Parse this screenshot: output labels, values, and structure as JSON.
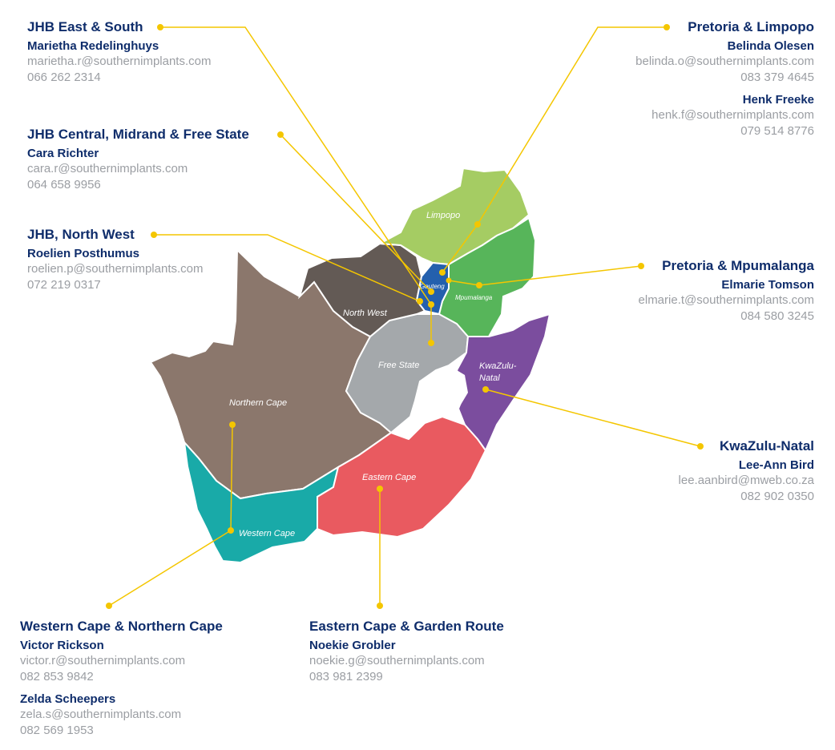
{
  "colors": {
    "title_navy": "#0f2d6b",
    "detail_grey": "#9b9ea3",
    "leader_yellow": "#f4c600",
    "limpopo": "#a5cc63",
    "mpumalanga": "#57b55a",
    "gauteng": "#2460ad",
    "north_west": "#635a55",
    "free_state": "#a4a8ab",
    "kwazulu_natal": "#7b4d9e",
    "northern_cape": "#8b776c",
    "western_cape": "#19aaa8",
    "eastern_cape": "#e95a60"
  },
  "map_labels": {
    "limpopo": "Limpopo",
    "gauteng": "Gauteng",
    "mpumalanga": "Mpumalanga",
    "north_west": "North West",
    "free_state": "Free State",
    "kzn_line1": "KwaZulu-",
    "kzn_line2": "Natal",
    "northern_cape": "Northern Cape",
    "eastern_cape": "Eastern Cape",
    "western_cape": "Western Cape"
  },
  "regions": [
    {
      "title": "JHB East & South",
      "contacts": [
        {
          "name": "Marietha Redelinghuys",
          "email": "marietha.r@southernimplants.com",
          "phone": "066 262 2314"
        }
      ]
    },
    {
      "title": "JHB Central, Midrand & Free State",
      "contacts": [
        {
          "name": "Cara Richter",
          "email": "cara.r@southernimplants.com",
          "phone": "064 658 9956"
        }
      ]
    },
    {
      "title": "JHB, North West",
      "contacts": [
        {
          "name": "Roelien Posthumus",
          "email": "roelien.p@southernimplants.com",
          "phone": "072 219 0317"
        }
      ]
    },
    {
      "title": "Pretoria & Limpopo",
      "contacts": [
        {
          "name": "Belinda Olesen",
          "email": "belinda.o@southernimplants.com",
          "phone": "083 379 4645"
        },
        {
          "name": "Henk Freeke",
          "email": "henk.f@southernimplants.com",
          "phone": "079 514 8776"
        }
      ]
    },
    {
      "title": "Pretoria & Mpumalanga",
      "contacts": [
        {
          "name": "Elmarie Tomson",
          "email": "elmarie.t@southernimplants.com",
          "phone": "084 580 3245"
        }
      ]
    },
    {
      "title": "KwaZulu-Natal",
      "contacts": [
        {
          "name": "Lee-Ann Bird",
          "email": "lee.aanbird@mweb.co.za",
          "phone": "082 902 0350"
        }
      ]
    },
    {
      "title": "Western Cape & Northern Cape",
      "contacts": [
        {
          "name": "Victor Rickson",
          "email": "victor.r@southernimplants.com",
          "phone": "082 853 9842"
        },
        {
          "name": "Zelda Scheepers",
          "email": "zela.s@southernimplants.com",
          "phone": "082 569 1953"
        }
      ]
    },
    {
      "title": "Eastern Cape & Garden Route",
      "contacts": [
        {
          "name": "Noekie Grobler",
          "email": "noekie.g@southernimplants.com",
          "phone": "083 981 2399"
        }
      ]
    }
  ]
}
